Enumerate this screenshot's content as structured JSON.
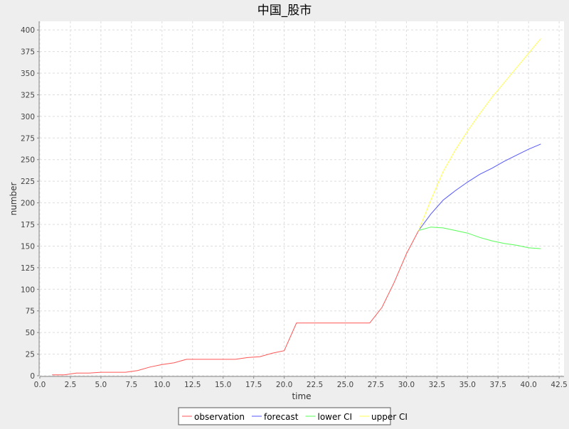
{
  "chart_data": {
    "type": "line",
    "title": "中国_股市",
    "xlabel": "time",
    "ylabel": "number",
    "xlim": [
      0,
      42.9
    ],
    "ylim": [
      0,
      410
    ],
    "xticks": [
      0.0,
      2.5,
      5.0,
      7.5,
      10.0,
      12.5,
      15.0,
      17.5,
      20.0,
      22.5,
      25.0,
      27.5,
      30.0,
      32.5,
      35.0,
      37.5,
      40.0,
      42.5
    ],
    "xtick_labels": [
      "0.0",
      "2.5",
      "5.0",
      "7.5",
      "10.0",
      "12.5",
      "15.0",
      "17.5",
      "20.0",
      "22.5",
      "25.0",
      "27.5",
      "30.0",
      "32.5",
      "35.0",
      "37.5",
      "40.0",
      "42.5"
    ],
    "yticks": [
      0,
      25,
      50,
      75,
      100,
      125,
      150,
      175,
      200,
      225,
      250,
      275,
      300,
      325,
      350,
      375,
      400
    ],
    "ytick_labels": [
      "0",
      "25",
      "50",
      "75",
      "100",
      "125",
      "150",
      "175",
      "200",
      "225",
      "250",
      "275",
      "300",
      "325",
      "350",
      "375",
      "400"
    ],
    "grid": true,
    "legend_position": "bottom-center",
    "series": [
      {
        "name": "observation",
        "color": "#ff5555",
        "x": [
          1,
          2,
          3,
          4,
          5,
          6,
          7,
          8,
          9,
          10,
          11,
          12,
          13,
          14,
          15,
          16,
          17,
          18,
          19,
          20,
          21,
          22,
          23,
          24,
          25,
          26,
          27,
          28,
          29,
          30,
          31
        ],
        "y": [
          1,
          1,
          3,
          3,
          4,
          4,
          4,
          6,
          10,
          13,
          15,
          19,
          19,
          19,
          19,
          19,
          21,
          22,
          26,
          29,
          61,
          61,
          61,
          61,
          61,
          61,
          61,
          79,
          108,
          141,
          168
        ]
      },
      {
        "name": "forecast",
        "color": "#5555ff",
        "x": [
          31,
          32,
          33,
          34,
          35,
          36,
          37,
          38,
          39,
          40,
          41
        ],
        "y": [
          168,
          187,
          203,
          214,
          224,
          233,
          240,
          248,
          255,
          262,
          268
        ]
      },
      {
        "name": "lower CI",
        "color": "#55ff55",
        "x": [
          31,
          32,
          33,
          34,
          35,
          36,
          37,
          38,
          39,
          40,
          41
        ],
        "y": [
          168,
          172,
          171,
          168,
          165,
          160,
          156,
          153,
          151,
          148,
          147
        ]
      },
      {
        "name": "upper CI",
        "color": "#ffff55",
        "x": [
          31,
          32,
          33,
          34,
          35,
          36,
          37,
          38,
          39,
          40,
          41
        ],
        "y": [
          168,
          203,
          236,
          261,
          283,
          303,
          322,
          339,
          356,
          373,
          390
        ]
      }
    ]
  }
}
